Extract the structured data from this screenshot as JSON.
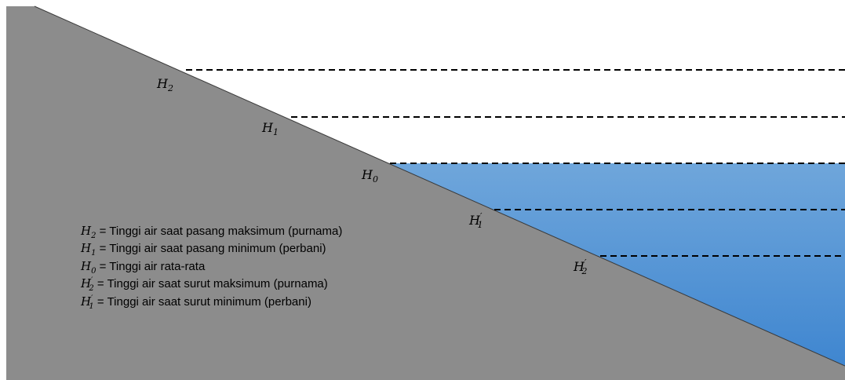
{
  "colors": {
    "ground": "#8c8c8c",
    "water_top": "#6fa6db",
    "water_bottom": "#3f86d0",
    "dashed_line": "#000000"
  },
  "levels": [
    {
      "id": "H2",
      "symbol": "H",
      "sub": "2",
      "prime": ""
    },
    {
      "id": "H1",
      "symbol": "H",
      "sub": "1",
      "prime": ""
    },
    {
      "id": "H0",
      "symbol": "H",
      "sub": "0",
      "prime": ""
    },
    {
      "id": "H1p",
      "symbol": "H",
      "sub": "1",
      "prime": "′"
    },
    {
      "id": "H2p",
      "symbol": "H",
      "sub": "2",
      "prime": "′"
    }
  ],
  "legend": [
    {
      "symbol": "H",
      "sub": "2",
      "prime": "",
      "text": " = Tinggi air saat pasang maksimum (purnama)"
    },
    {
      "symbol": "H",
      "sub": "1",
      "prime": "",
      "text": " = Tinggi air saat pasang minimum (perbani)"
    },
    {
      "symbol": "H",
      "sub": "0",
      "prime": "",
      "text": " = Tinggi air rata-rata"
    },
    {
      "symbol": "H",
      "sub": "2",
      "prime": "′",
      "text": " = Tinggi air saat surut maksimum (purnama)"
    },
    {
      "symbol": "H",
      "sub": "1",
      "prime": "′",
      "text": " = Tinggi air saat surut minimum (perbani)"
    }
  ]
}
